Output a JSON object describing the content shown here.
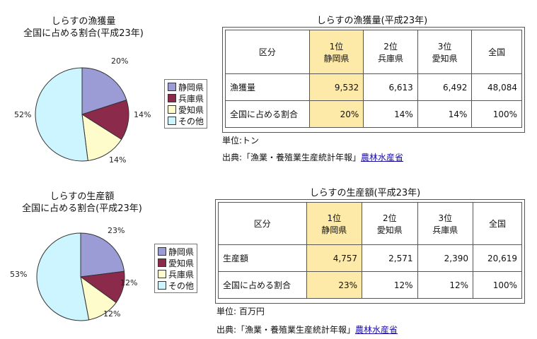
{
  "chart_data": [
    {
      "type": "pie",
      "title": "しらすの漁獲量",
      "subtitle": "全国に占める割合(平成23年)",
      "categories": [
        "静岡県",
        "兵庫県",
        "愛知県",
        "その他"
      ],
      "values": [
        20,
        14,
        14,
        52
      ],
      "value_labels": [
        "20%",
        "14%",
        "14%",
        "52%"
      ],
      "colors": [
        "#9b9bd6",
        "#8b2a4b",
        "#fffccc",
        "#ccf5ff"
      ]
    },
    {
      "type": "pie",
      "title": "しらすの生産額",
      "subtitle": "全国に占める割合(平成23年)",
      "categories": [
        "静岡県",
        "愛知県",
        "兵庫県",
        "その他"
      ],
      "values": [
        23,
        12,
        12,
        53
      ],
      "value_labels": [
        "23%",
        "12%",
        "12%",
        "53%"
      ],
      "colors": [
        "#9b9bd6",
        "#8b2a4b",
        "#fffccc",
        "#ccf5ff"
      ]
    },
    {
      "type": "table",
      "title": "しらすの漁獲量(平成23年)",
      "header": [
        "区分",
        "1位\n静岡県",
        "2位\n兵庫県",
        "3位\n愛知県",
        "全国"
      ],
      "rows": [
        [
          "漁獲量",
          "9,532",
          "6,613",
          "6,492",
          "48,084"
        ],
        [
          "全国に占める割合",
          "20%",
          "14%",
          "14%",
          "100%"
        ]
      ],
      "unit": "単位:トン",
      "source": "出典:「漁業・養殖業生産統計年報」",
      "source_link": "農林水産省"
    },
    {
      "type": "table",
      "title": "しらすの生産額(平成23年)",
      "header": [
        "区分",
        "1位\n静岡県",
        "2位\n愛知県",
        "3位\n兵庫県",
        "全国"
      ],
      "rows": [
        [
          "生産額",
          "4,757",
          "2,571",
          "2,390",
          "20,619"
        ],
        [
          "全国に占める割合",
          "23%",
          "12%",
          "12%",
          "100%"
        ]
      ],
      "unit": "単位: 百万円",
      "source": "出典:「漁業・養殖業生産統計年報」",
      "source_link": "農林水産省"
    }
  ]
}
